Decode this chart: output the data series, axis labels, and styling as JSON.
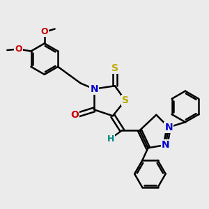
{
  "bg_color": "#ebebeb",
  "bond_color": "#000000",
  "bond_width": 1.8,
  "figsize": [
    3.0,
    3.0
  ],
  "dpi": 100,
  "xlim": [
    0,
    10
  ],
  "ylim": [
    0,
    10
  ],
  "colors": {
    "N": "#0000cc",
    "O": "#cc0000",
    "S": "#bbaa00",
    "H": "#008888",
    "C": "#000000"
  }
}
